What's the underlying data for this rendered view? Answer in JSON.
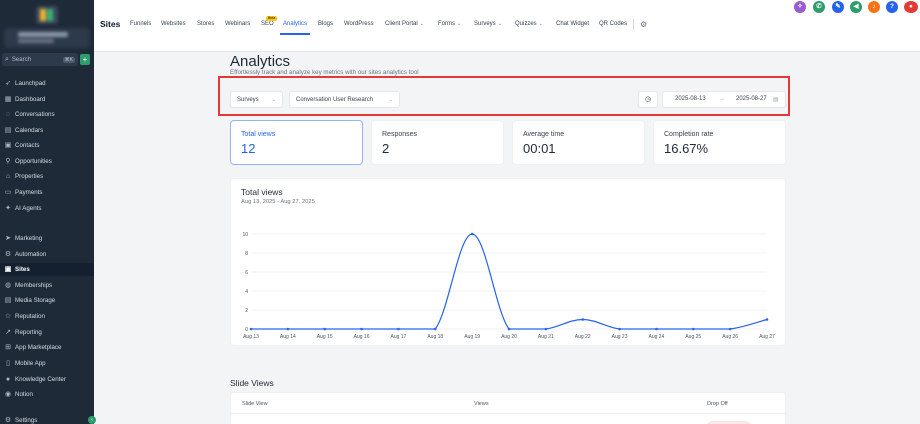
{
  "sidebar": {
    "search_placeholder": "Search",
    "search_shortcut": "⌘K",
    "items": [
      {
        "label": "Launchpad",
        "icon": "rocket-icon"
      },
      {
        "label": "Dashboard",
        "icon": "dashboard-icon"
      },
      {
        "label": "Conversations",
        "icon": "chat-icon"
      },
      {
        "label": "Calendars",
        "icon": "calendar-icon"
      },
      {
        "label": "Contacts",
        "icon": "contacts-icon"
      },
      {
        "label": "Opportunities",
        "icon": "funnel-icon"
      },
      {
        "label": "Properties",
        "icon": "home-icon"
      },
      {
        "label": "Payments",
        "icon": "payments-icon"
      },
      {
        "label": "AI Agents",
        "icon": "sparkle-icon"
      },
      {
        "label": "Marketing",
        "icon": "send-icon"
      },
      {
        "label": "Automation",
        "icon": "automation-icon"
      },
      {
        "label": "Sites",
        "icon": "globe-icon"
      },
      {
        "label": "Memberships",
        "icon": "memberships-icon"
      },
      {
        "label": "Media Storage",
        "icon": "folder-icon"
      },
      {
        "label": "Reputation",
        "icon": "star-icon"
      },
      {
        "label": "Reporting",
        "icon": "chart-icon"
      },
      {
        "label": "App Marketplace",
        "icon": "grid-icon"
      },
      {
        "label": "Mobile App",
        "icon": "phone-icon"
      },
      {
        "label": "Knowledge Center",
        "icon": "book-icon"
      },
      {
        "label": "Notion",
        "icon": "notion-icon"
      },
      {
        "label": "Settings",
        "icon": "gear-icon"
      }
    ]
  },
  "topnav": {
    "title": "Sites",
    "tabs": [
      {
        "label": "Funnels"
      },
      {
        "label": "Websites"
      },
      {
        "label": "Stores"
      },
      {
        "label": "Webinars"
      },
      {
        "label": "SEO"
      },
      {
        "label": "Analytics"
      },
      {
        "label": "Blogs"
      },
      {
        "label": "WordPress"
      },
      {
        "label": "Client Portal"
      },
      {
        "label": "Forms"
      },
      {
        "label": "Surveys"
      },
      {
        "label": "Quizzes"
      },
      {
        "label": "Chat Widget"
      },
      {
        "label": "QR Codes"
      }
    ],
    "beta_badge": "Beta"
  },
  "colors": {
    "accent": "#2563eb",
    "sidebar_bg": "#1f2a38",
    "highlight": "#e53935"
  },
  "page": {
    "title": "Analytics",
    "subtitle": "Effortlessly track and analyze key metrics with our sites analytics tool"
  },
  "filters": {
    "type": "Surveys",
    "survey": "Conversation User Research",
    "start_date": "2025-08-13",
    "end_date": "2025-08-27"
  },
  "stats": [
    {
      "label": "Total views",
      "value": "12"
    },
    {
      "label": "Responses",
      "value": "2"
    },
    {
      "label": "Average time",
      "value": "00:01"
    },
    {
      "label": "Completion rate",
      "value": "16.67%"
    }
  ],
  "chart_card": {
    "title": "Total views",
    "subtitle": "Aug 13, 2025 - Aug 27, 2025"
  },
  "chart_data": {
    "type": "line",
    "categories": [
      "Aug 13",
      "Aug 14",
      "Aug 15",
      "Aug 16",
      "Aug 17",
      "Aug 18",
      "Aug 19",
      "Aug 20",
      "Aug 21",
      "Aug 22",
      "Aug 23",
      "Aug 24",
      "Aug 25",
      "Aug 26",
      "Aug 27"
    ],
    "values": [
      0,
      0,
      0,
      0,
      0,
      0,
      10,
      0,
      0,
      1,
      0,
      0,
      0,
      0,
      1
    ],
    "yticks": [
      0,
      2,
      4,
      6,
      8,
      10
    ],
    "ylim": [
      0,
      10
    ],
    "color": "#2563eb"
  },
  "slide_views": {
    "title": "Slide Views",
    "columns": [
      "Slide View",
      "Views",
      "Drop Off"
    ]
  }
}
